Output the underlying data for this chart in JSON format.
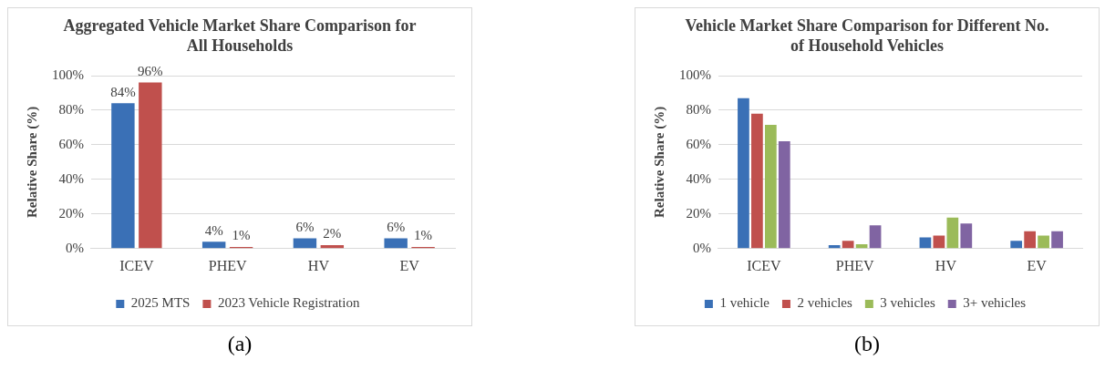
{
  "chart_data": [
    {
      "type": "bar",
      "title": "Aggregated Vehicle Market Share Comparison for All Households",
      "ylabel": "Relative Share (%)",
      "categories": [
        "ICEV",
        "PHEV",
        "HV",
        "EV"
      ],
      "series": [
        {
          "name": "2025 MTS",
          "color": "#3a70b6",
          "values": [
            84,
            4,
            6,
            6
          ],
          "value_labels": [
            "84%",
            "4%",
            "6%",
            "6%"
          ]
        },
        {
          "name": "2023 Vehicle Registration",
          "color": "#c0504d",
          "values": [
            96,
            1,
            2,
            1
          ],
          "value_labels": [
            "96%",
            "1%",
            "2%",
            "1%"
          ]
        }
      ],
      "ylim": [
        0,
        100
      ],
      "yticks": [
        {
          "value": 0,
          "label": "0%"
        },
        {
          "value": 20,
          "label": "20%"
        },
        {
          "value": 40,
          "label": "40%"
        },
        {
          "value": 60,
          "label": "60%"
        },
        {
          "value": 80,
          "label": "80%"
        },
        {
          "value": 100,
          "label": "100%"
        }
      ],
      "grid": "y",
      "legend": "bottom",
      "annotations": [
        "(a)"
      ]
    },
    {
      "type": "bar",
      "title": "Vehicle Market Share Comparison for Different No. of Household Vehicles",
      "ylabel": "Relative Share (%)",
      "categories": [
        "ICEV",
        "PHEV",
        "HV",
        "EV"
      ],
      "series": [
        {
          "name": "1 vehicle",
          "color": "#3a70b6",
          "values": [
            87,
            2,
            6.5,
            4.5
          ]
        },
        {
          "name": "2 vehicles",
          "color": "#c0504d",
          "values": [
            78,
            4.5,
            7.5,
            10
          ]
        },
        {
          "name": "3 vehicles",
          "color": "#9bbb59",
          "values": [
            71.5,
            2.5,
            18,
            7.5
          ]
        },
        {
          "name": "3+ vehicles",
          "color": "#8064a2",
          "values": [
            62,
            13.5,
            14.5,
            10
          ]
        }
      ],
      "ylim": [
        0,
        100
      ],
      "yticks": [
        {
          "value": 0,
          "label": "0%"
        },
        {
          "value": 20,
          "label": "20%"
        },
        {
          "value": 40,
          "label": "40%"
        },
        {
          "value": 60,
          "label": "60%"
        },
        {
          "value": 80,
          "label": "80%"
        },
        {
          "value": 100,
          "label": "100%"
        }
      ],
      "grid": "y",
      "legend": "bottom",
      "annotations": [
        "(b)"
      ]
    }
  ]
}
